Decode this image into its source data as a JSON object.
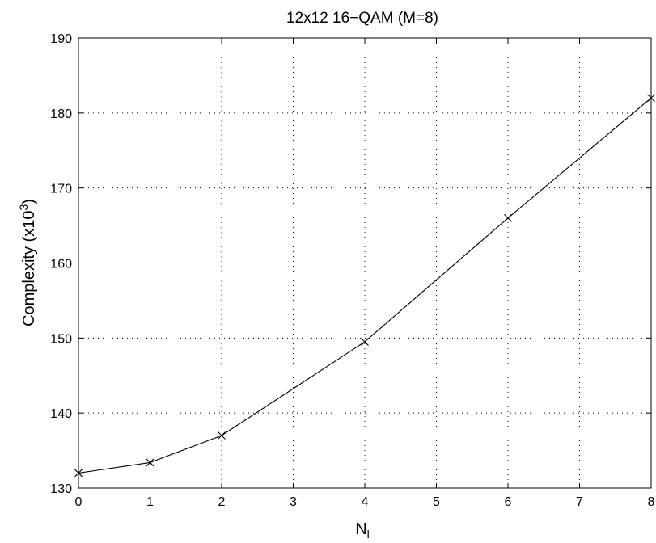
{
  "chart_data": {
    "type": "line",
    "title": "12x12 16−QAM (M=8)",
    "xlabel": {
      "main": "N",
      "sub": "l"
    },
    "ylabel": {
      "main": "Complexity (x10",
      "sup": "3",
      "end": ")"
    },
    "xlim": [
      0,
      8
    ],
    "ylim": [
      130,
      190
    ],
    "xticks": [
      0,
      1,
      2,
      3,
      4,
      5,
      6,
      7,
      8
    ],
    "yticks": [
      130,
      140,
      150,
      160,
      170,
      180,
      190
    ],
    "grid": true,
    "series": [
      {
        "marker": "x",
        "color": "#000000",
        "x": [
          0,
          1,
          2,
          4,
          6,
          8
        ],
        "y": [
          132.0,
          133.4,
          137.0,
          149.5,
          166.0,
          182.0
        ]
      }
    ]
  }
}
